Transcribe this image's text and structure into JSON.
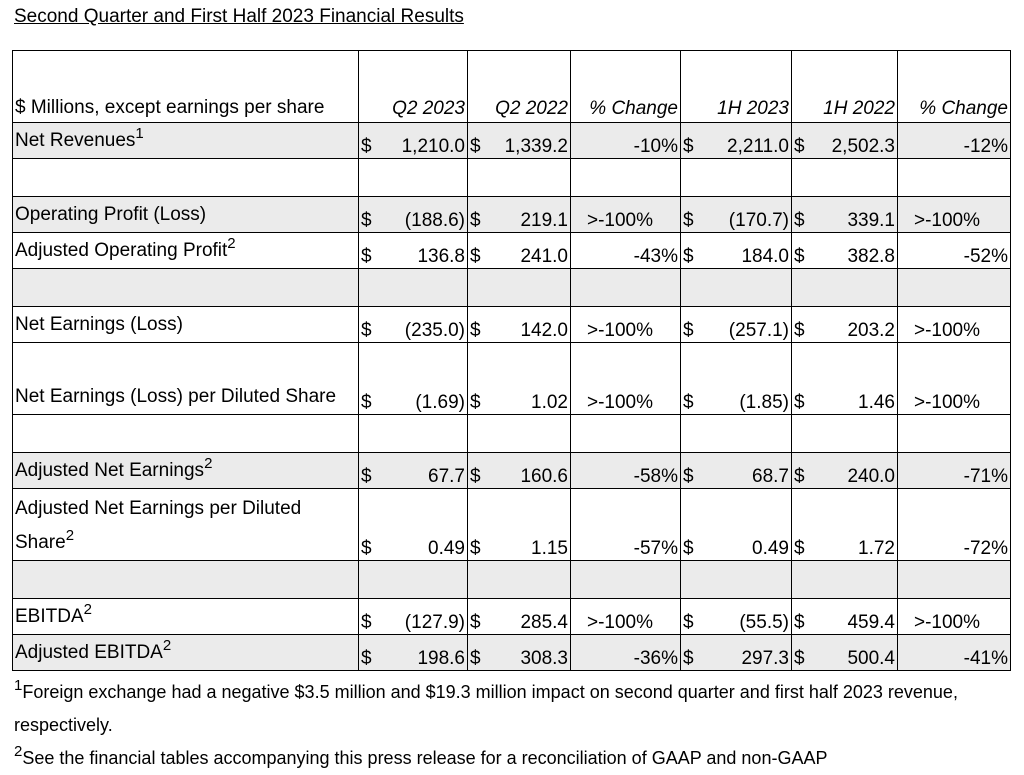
{
  "title": "Second Quarter and First Half 2023 Financial Results",
  "header": {
    "label": "$ Millions, except earnings per share",
    "cols": [
      "Q2 2023",
      "Q2 2022",
      "% Change",
      "1H 2023",
      "1H 2022",
      "% Change"
    ]
  },
  "rows": [
    {
      "label": "Net Revenues",
      "sup": "1",
      "shade": true,
      "cells": [
        "1,210.0",
        "1,339.2",
        "-10%",
        "2,211.0",
        "2,502.3",
        "-12%"
      ],
      "pct_gt": false
    },
    {
      "spacer": true,
      "shade": false
    },
    {
      "label": "Operating Profit (Loss)",
      "sup": "",
      "shade": true,
      "cells": [
        "(188.6)",
        "219.1",
        ">-100%",
        "(170.7)",
        "339.1",
        ">-100%"
      ],
      "pct_gt": true
    },
    {
      "label": "Adjusted Operating Profit",
      "sup": "2",
      "shade": false,
      "cells": [
        "136.8",
        "241.0",
        "-43%",
        "184.0",
        "382.8",
        "-52%"
      ],
      "pct_gt": false
    },
    {
      "spacer": true,
      "shade": true
    },
    {
      "label": "Net Earnings (Loss)",
      "sup": "",
      "shade": false,
      "cells": [
        "(235.0)",
        "142.0",
        ">-100%",
        "(257.1)",
        "203.2",
        ">-100%"
      ],
      "pct_gt": true
    },
    {
      "label": "Net Earnings (Loss) per Diluted Share",
      "sup": "",
      "shade": false,
      "tall": true,
      "cells": [
        "(1.69)",
        "1.02",
        ">-100%",
        "(1.85)",
        "1.46",
        ">-100%"
      ],
      "pct_gt": true
    },
    {
      "spacer": true,
      "shade": false
    },
    {
      "label": "Adjusted Net Earnings",
      "sup": "2",
      "shade": true,
      "cells": [
        "67.7",
        "160.6",
        "-58%",
        "68.7",
        "240.0",
        "-71%"
      ],
      "pct_gt": false
    },
    {
      "label": "Adjusted Net Earnings per Diluted Share",
      "sup": "2",
      "shade": false,
      "tall": true,
      "cells": [
        "0.49",
        "1.15",
        "-57%",
        "0.49",
        "1.72",
        "-72%"
      ],
      "pct_gt": false
    },
    {
      "spacer": true,
      "shade": true
    },
    {
      "label": "EBITDA",
      "sup": "2",
      "shade": false,
      "cells": [
        "(127.9)",
        "285.4",
        ">-100%",
        "(55.5)",
        "459.4",
        ">-100%"
      ],
      "pct_gt": true
    },
    {
      "label": "Adjusted EBITDA",
      "sup": "2",
      "shade": true,
      "cells": [
        "198.6",
        "308.3",
        "-36%",
        "297.3",
        "500.4",
        "-41%"
      ],
      "pct_gt": false
    }
  ],
  "currency_symbol": "$",
  "footnotes": [
    {
      "mark": "1",
      "text": "Foreign exchange had a negative $3.5 million and $19.3 million impact on second quarter and first half 2023 revenue, respectively."
    },
    {
      "mark": "2",
      "text": "See the financial tables accompanying this press release for a reconciliation of GAAP and non-GAAP"
    }
  ]
}
